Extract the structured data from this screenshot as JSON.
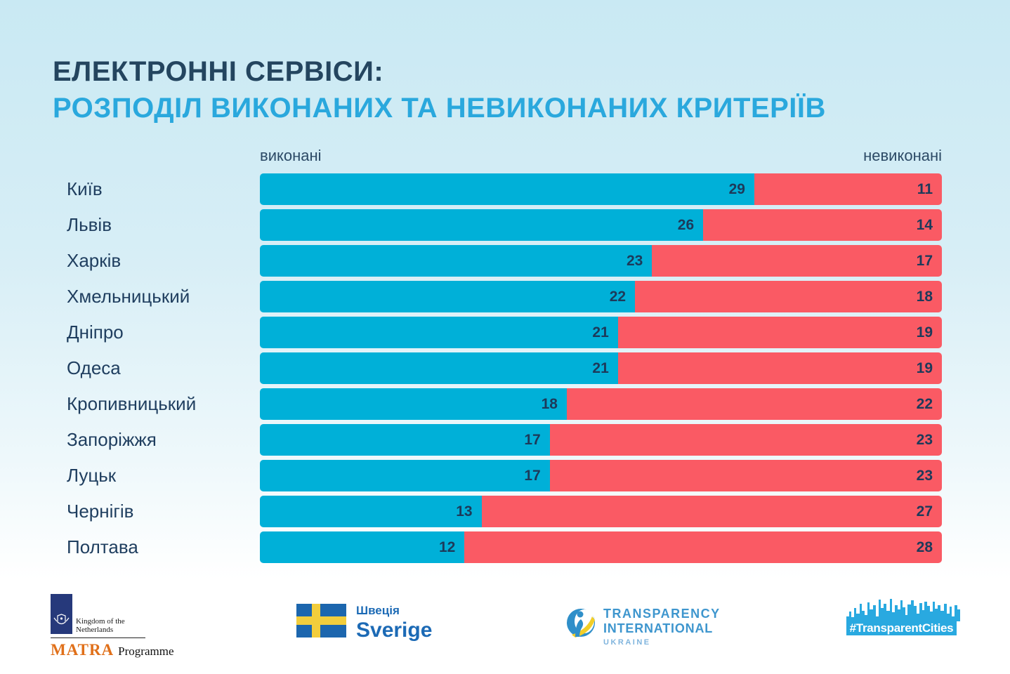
{
  "title": {
    "line1": "ЕЛЕКТРОННІ СЕРВІСИ:",
    "line2": "РОЗПОДІЛ ВИКОНАНИХ ТА НЕВИКОНАНИХ КРИТЕРІЇВ"
  },
  "legend": {
    "done": "виконані",
    "undone": "невиконані"
  },
  "chart_data": {
    "type": "bar",
    "orientation": "horizontal-stacked",
    "title": "ЕЛЕКТРОННІ СЕРВІСИ: РОЗПОДІЛ ВИКОНАНИХ ТА НЕВИКОНАНИХ КРИТЕРІЇВ",
    "categories": [
      "Київ",
      "Львів",
      "Харків",
      "Хмельницький",
      "Дніпро",
      "Одеса",
      "Кропивницький",
      "Запоріжжя",
      "Луцьк",
      "Чернігів",
      "Полтава"
    ],
    "series": [
      {
        "name": "виконані",
        "color": "#00B0D8",
        "values": [
          29,
          26,
          23,
          22,
          21,
          21,
          18,
          17,
          17,
          13,
          12
        ]
      },
      {
        "name": "невиконані",
        "color": "#FA5A64",
        "values": [
          11,
          14,
          17,
          18,
          19,
          19,
          22,
          23,
          23,
          27,
          28
        ]
      }
    ],
    "xlim": [
      0,
      40
    ],
    "total_per_row": 40,
    "value_labels": "inside-right-of-each-segment",
    "legend_position": "above-bars-left-and-right"
  },
  "footer": {
    "matra": {
      "kingdom": "Kingdom of the Netherlands",
      "name": "MATRA",
      "programme": "Programme"
    },
    "sweden": {
      "uk": "Швеція",
      "sv": "Sverige"
    },
    "ti": {
      "line1": "TRANSPARENCY",
      "line2": "INTERNATIONAL",
      "line3": "UKRAINE"
    },
    "transparent_cities": {
      "label": "#TransparentCities"
    }
  },
  "colors": {
    "background_top": "#C9E9F3",
    "background_bottom": "#FFFFFF",
    "title_navy": "#24455F",
    "title_cyan": "#2AA8DD",
    "bar_done": "#00B0D8",
    "bar_undone": "#FA5A64",
    "value_text": "#1D3A5A",
    "tc_cyan": "#29A9E0"
  }
}
